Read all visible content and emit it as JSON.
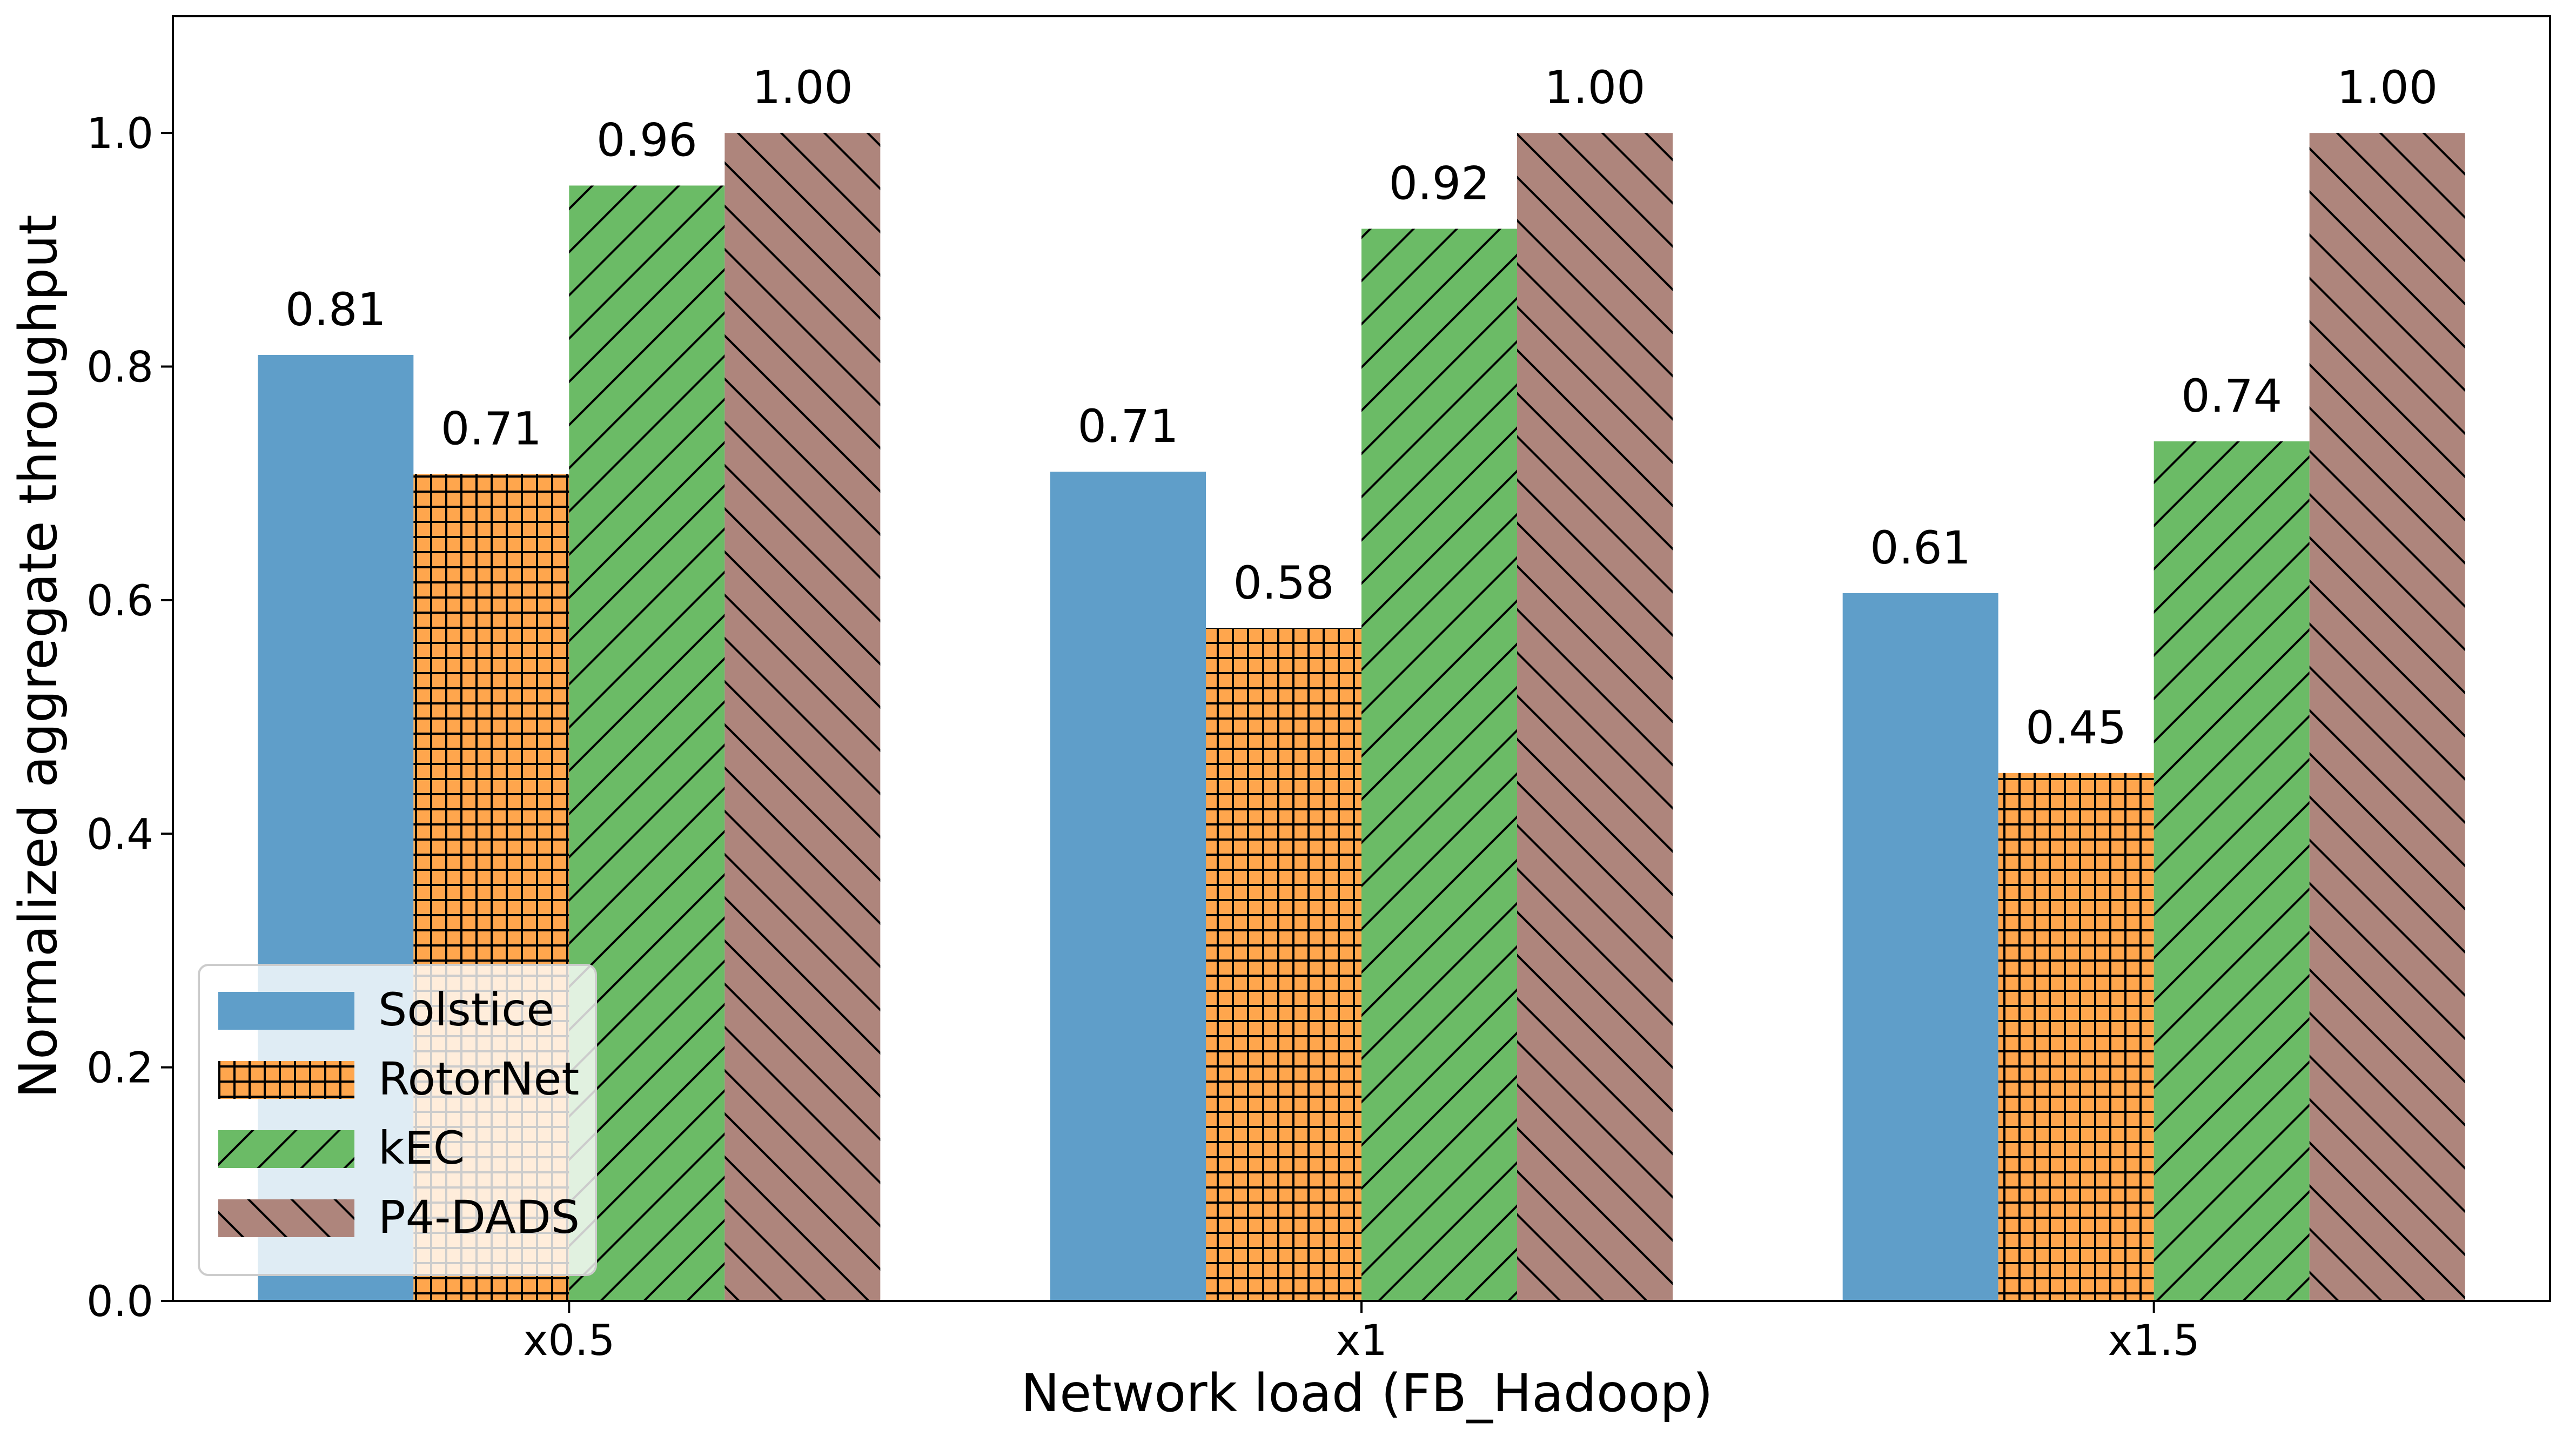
{
  "chart_data": {
    "type": "bar",
    "xlabel": "Network load (FB_Hadoop)",
    "ylabel": "Normalized aggregate throughput",
    "categories": [
      "x0.5",
      "x1",
      "x1.5"
    ],
    "ylim": [
      0,
      1.1
    ],
    "yticks": [
      0.0,
      0.2,
      0.4,
      0.6,
      0.8,
      1.0
    ],
    "ytick_labels": [
      "0.0",
      "0.2",
      "0.4",
      "0.6",
      "0.8",
      "1.0"
    ],
    "grid": false,
    "legend_position": "lower-left",
    "series": [
      {
        "name": "Solstice",
        "color": "#5f9ec9",
        "hatch": "none",
        "values": [
          0.81,
          0.71,
          0.606
        ],
        "labels": [
          "0.81",
          "0.71",
          "0.61"
        ]
      },
      {
        "name": "RotorNet",
        "color": "#ffa64d",
        "hatch": "grid",
        "values": [
          0.708,
          0.576,
          0.452
        ],
        "labels": [
          "0.71",
          "0.58",
          "0.45"
        ]
      },
      {
        "name": "kEC",
        "color": "#6bbb66",
        "hatch": "forward-diagonal",
        "values": [
          0.955,
          0.918,
          0.736
        ],
        "labels": [
          "0.96",
          "0.92",
          "0.74"
        ]
      },
      {
        "name": "P4-DADS",
        "color": "#ae857c",
        "hatch": "back-diagonal",
        "values": [
          1.0,
          1.0,
          1.0
        ],
        "labels": [
          "1.00",
          "1.00",
          "1.00"
        ]
      }
    ]
  }
}
